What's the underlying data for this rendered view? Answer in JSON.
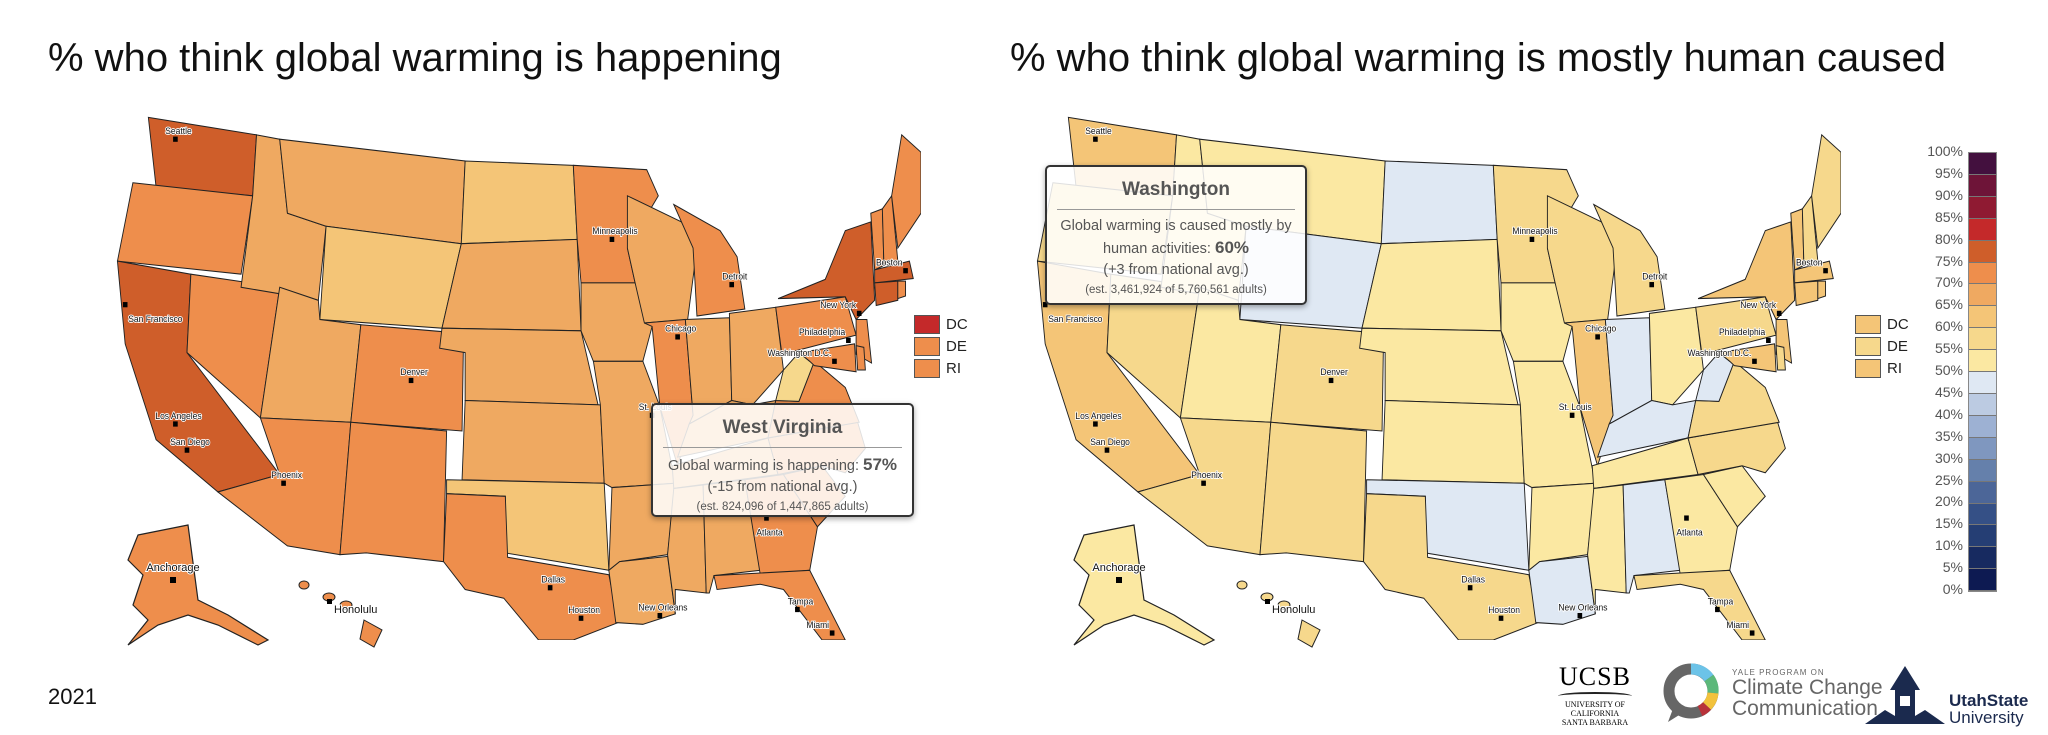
{
  "year": "2021",
  "color_scale": {
    "bins": [
      "#0d1a52",
      "#172a60",
      "#253e74",
      "#355086",
      "#4c6698",
      "#6580ab",
      "#7f97bf",
      "#9db1d3",
      "#bccbe2",
      "#dfe8f3",
      "#fbe8a2",
      "#f6d88c",
      "#f4c577",
      "#efa961",
      "#ee8e4c",
      "#cf5e2a",
      "#c4292a",
      "#8f1a32",
      "#6e1438",
      "#43103e"
    ],
    "tick_labels": [
      "100%",
      "95%",
      "90%",
      "85%",
      "80%",
      "75%",
      "70%",
      "65%",
      "60%",
      "55%",
      "50%",
      "45%",
      "40%",
      "35%",
      "30%",
      "25%",
      "20%",
      "15%",
      "10%",
      "5%",
      "0%"
    ]
  },
  "cities": [
    "Seattle",
    "San Francisco",
    "Los Angeles",
    "San Diego",
    "Phoenix",
    "Denver",
    "Dallas",
    "Houston",
    "Minneapolis",
    "Chicago",
    "St. Louis",
    "Detroit",
    "New York",
    "Boston",
    "Philadelphia",
    "Washington D.C.",
    "New Orleans",
    "Atlanta",
    "Tampa",
    "Miami",
    "Anchorage",
    "Honolulu"
  ],
  "maps": [
    {
      "title": "% who think global warming is happening",
      "small_states": [
        {
          "label": "DC",
          "value": 83
        },
        {
          "label": "DE",
          "value": 73
        },
        {
          "label": "RI",
          "value": 74
        }
      ],
      "values": {
        "WA": 78,
        "OR": 72,
        "CA": 78,
        "NV": 72,
        "ID": 65,
        "MT": 66,
        "WY": 60,
        "UT": 67,
        "AZ": 71,
        "CO": 72,
        "NM": 72,
        "ND": 62,
        "SD": 66,
        "NE": 68,
        "KS": 68,
        "OK": 64,
        "TX": 72,
        "MN": 72,
        "IA": 69,
        "MO": 68,
        "AR": 65,
        "LA": 68,
        "WI": 69,
        "IL": 72,
        "MI": 72,
        "IN": 68,
        "OH": 69,
        "KY": 65,
        "TN": 66,
        "MS": 68,
        "AL": 65,
        "GA": 70,
        "FL": 73,
        "SC": 70,
        "NC": 71,
        "VA": 71,
        "WV": 57,
        "PA": 71,
        "NY": 76,
        "NJ": 74,
        "MD": 74,
        "DE": 73,
        "VT": 72,
        "NH": 71,
        "ME": 71,
        "MA": 76,
        "CT": 76,
        "RI": 74,
        "AK": 72,
        "HI": 73
      },
      "tooltip": {
        "state": "West Virginia",
        "line1": "Global warming is happening:",
        "line1b": "",
        "value": "57%",
        "diff": "(-15 from national avg.)",
        "estimate": "(est. 824,096 of 1,447,865 adults)"
      }
    },
    {
      "title": "% who think global warming is mostly human caused",
      "small_states": [
        {
          "label": "DC",
          "value": 62
        },
        {
          "label": "DE",
          "value": 59
        },
        {
          "label": "RI",
          "value": 60
        }
      ],
      "values": {
        "WA": 60,
        "OR": 57,
        "CA": 62,
        "NV": 58,
        "ID": 54,
        "MT": 54,
        "WY": 48,
        "UT": 54,
        "AZ": 57,
        "CO": 58,
        "NM": 58,
        "ND": 47,
        "SD": 53,
        "NE": 54,
        "KS": 54,
        "OK": 49,
        "TX": 58,
        "MN": 57,
        "IA": 54,
        "MO": 53,
        "AR": 52,
        "LA": 49,
        "WI": 56,
        "IL": 60,
        "MI": 57,
        "IN": 49,
        "OH": 53,
        "KY": 49,
        "TN": 52,
        "MS": 53,
        "AL": 49,
        "GA": 54,
        "FL": 58,
        "SC": 54,
        "NC": 56,
        "VA": 57,
        "WV": 46,
        "PA": 57,
        "NY": 62,
        "NJ": 61,
        "MD": 61,
        "DE": 59,
        "VT": 61,
        "NH": 58,
        "ME": 57,
        "MA": 62,
        "CT": 61,
        "RI": 60,
        "AK": 54,
        "HI": 57
      },
      "tooltip": {
        "state": "Washington",
        "line1": "Global warming is caused mostly by",
        "line1b": "human activities:",
        "value": "60%",
        "diff": "(+3 from national avg.)",
        "estimate": "(est. 3,461,924 of 5,760,561 adults)"
      }
    }
  ],
  "logos": {
    "ucsb": "UCSB",
    "ucsb_sub1": "UNIVERSITY OF CALIFORNIA",
    "ucsb_sub2": "SANTA BARBARA",
    "yale_top": "YALE PROGRAM ON",
    "yale_1": "Climate Change",
    "yale_2": "Communication",
    "usu_1": "UtahState",
    "usu_2": "University"
  }
}
